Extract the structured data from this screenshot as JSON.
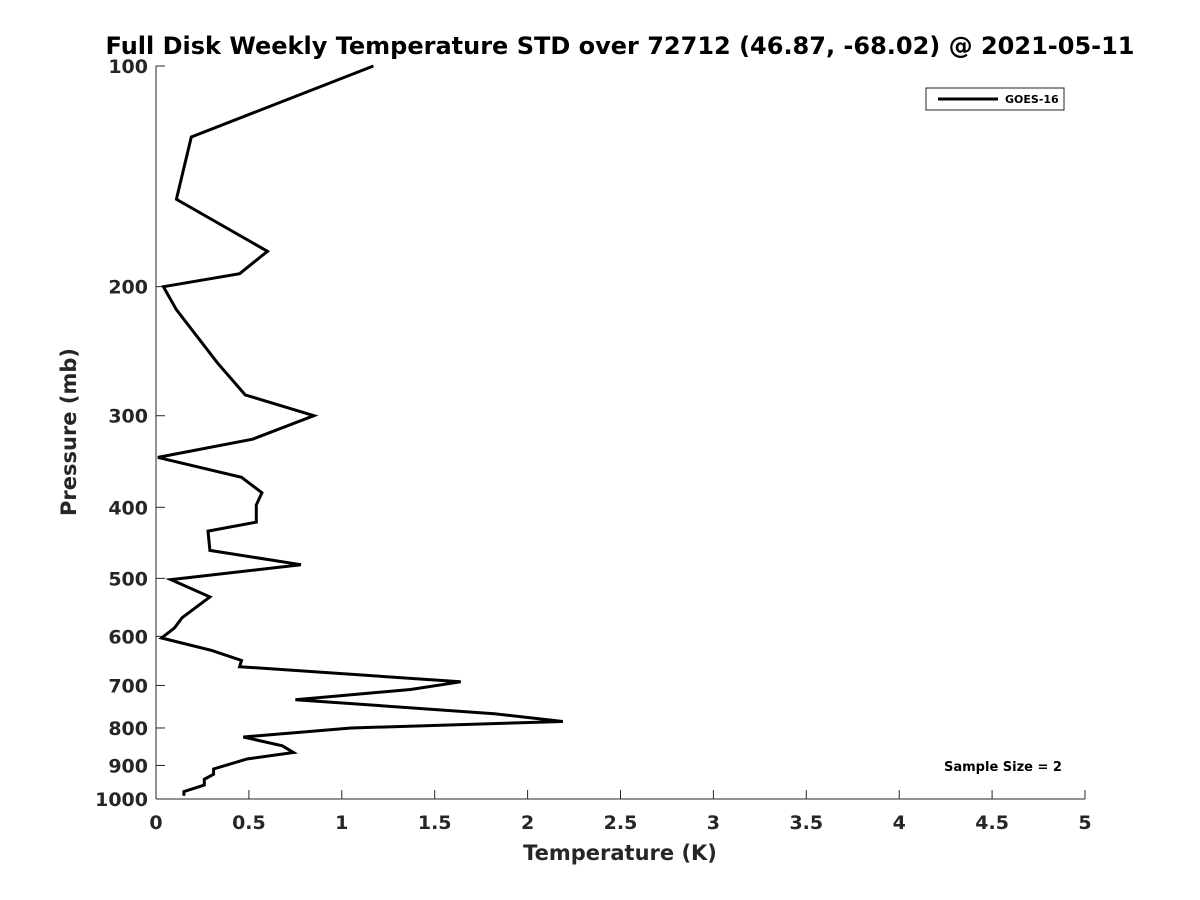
{
  "chart_data": {
    "type": "line",
    "title": "Full Disk Weekly Temperature STD over 72712 (46.87, -68.02) @ 2021-05-11",
    "xlabel": "Temperature (K)",
    "ylabel": "Pressure (mb)",
    "xlim": [
      0,
      5
    ],
    "ylim": [
      1000,
      100
    ],
    "yscale": "log",
    "y_reversed": true,
    "x_ticks": [
      0,
      0.5,
      1,
      1.5,
      2,
      2.5,
      3,
      3.5,
      4,
      4.5,
      5
    ],
    "x_tick_labels": [
      "0",
      "0.5",
      "1",
      "1.5",
      "2",
      "2.5",
      "3",
      "3.5",
      "4",
      "4.5",
      "5"
    ],
    "y_ticks": [
      100,
      200,
      300,
      400,
      500,
      600,
      700,
      800,
      900,
      1000
    ],
    "y_tick_labels": [
      "100",
      "200",
      "300",
      "400",
      "500",
      "600",
      "700",
      "800",
      "900",
      "1000"
    ],
    "grid": false,
    "legend_position": "top-right",
    "series": [
      {
        "name": "GOES-16",
        "color": "#000000",
        "points": [
          [
            1.17,
            100
          ],
          [
            0.19,
            125
          ],
          [
            0.11,
            152
          ],
          [
            0.6,
            179
          ],
          [
            0.45,
            192
          ],
          [
            0.04,
            200
          ],
          [
            0.11,
            215
          ],
          [
            0.33,
            254
          ],
          [
            0.48,
            281
          ],
          [
            0.85,
            300
          ],
          [
            0.52,
            323
          ],
          [
            0.01,
            342
          ],
          [
            0.46,
            364
          ],
          [
            0.57,
            382
          ],
          [
            0.54,
            397
          ],
          [
            0.54,
            419
          ],
          [
            0.28,
            431
          ],
          [
            0.29,
            458
          ],
          [
            0.78,
            479
          ],
          [
            0.08,
            502
          ],
          [
            0.29,
            530
          ],
          [
            0.14,
            566
          ],
          [
            0.1,
            584
          ],
          [
            0.03,
            603
          ],
          [
            0.3,
            627
          ],
          [
            0.46,
            647
          ],
          [
            0.45,
            660
          ],
          [
            1.64,
            692
          ],
          [
            1.37,
            709
          ],
          [
            0.75,
            732
          ],
          [
            1.82,
            765
          ],
          [
            2.19,
            784
          ],
          [
            1.05,
            800
          ],
          [
            0.47,
            823
          ],
          [
            0.68,
            846
          ],
          [
            0.74,
            864
          ],
          [
            0.49,
            882
          ],
          [
            0.31,
            910
          ],
          [
            0.31,
            925
          ],
          [
            0.26,
            940
          ],
          [
            0.26,
            957
          ],
          [
            0.15,
            977
          ],
          [
            0.15,
            990
          ]
        ]
      }
    ],
    "annotations": [
      {
        "text": "Sample Size = 2",
        "position": "bottom-right"
      }
    ]
  }
}
